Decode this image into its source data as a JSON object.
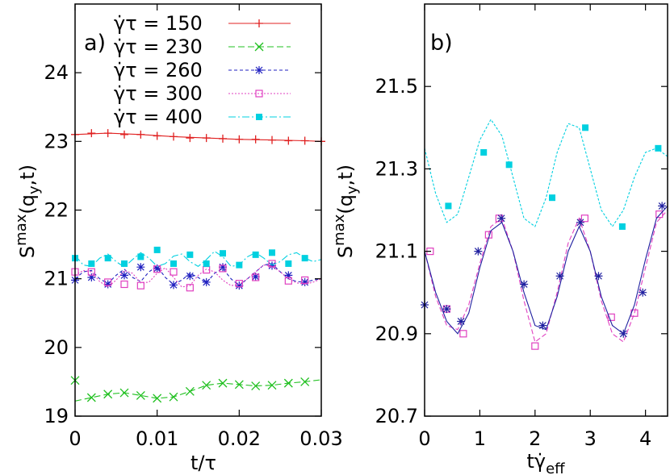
{
  "chart_data": [
    {
      "type": "line",
      "panel_label": "a)",
      "xlabel": "t/τ",
      "ylabel": "S",
      "ylabel_sup": "max",
      "ylabel_args": "(q",
      "ylabel_sub": "y",
      "ylabel_close": ",t)",
      "xlim": [
        0,
        0.03
      ],
      "ylim": [
        19,
        25
      ],
      "xticks": [
        "0",
        "0.01",
        "0.02",
        "0.03"
      ],
      "xtick_values": [
        0,
        0.01,
        0.02,
        0.03
      ],
      "yticks": [
        "19",
        "20",
        "21",
        "22",
        "23",
        "24"
      ],
      "ytick_values": [
        19,
        20,
        21,
        22,
        23,
        24
      ],
      "legend_position": "top-left",
      "series": [
        {
          "name": "γ̇τ  = 150",
          "color": "#e02020",
          "marker": "plus",
          "dash": "",
          "line": {
            "x": [
              0,
              0.004,
              0.008,
              0.012,
              0.016,
              0.02,
              0.024,
              0.028,
              0.03
            ],
            "y": [
              23.1,
              23.12,
              23.1,
              23.07,
              23.05,
              23.03,
              23.02,
              23.01,
              23.0
            ]
          },
          "points": {
            "x": [
              0,
              0.002,
              0.004,
              0.006,
              0.008,
              0.01,
              0.012,
              0.014,
              0.016,
              0.018,
              0.02,
              0.022,
              0.024,
              0.026,
              0.028,
              0.03
            ],
            "y": [
              23.1,
              23.12,
              23.12,
              23.1,
              23.1,
              23.08,
              23.07,
              23.05,
              23.05,
              23.04,
              23.03,
              23.03,
              23.02,
              23.01,
              23.01,
              23.0
            ]
          }
        },
        {
          "name": "γ̇τ  = 230",
          "color": "#20c020",
          "marker": "cross",
          "dash": "8,4",
          "line": {
            "x": [
              0,
              0.002,
              0.004,
              0.006,
              0.008,
              0.01,
              0.012,
              0.014,
              0.016,
              0.018,
              0.02,
              0.022,
              0.024,
              0.026,
              0.028,
              0.03
            ],
            "y": [
              19.22,
              19.27,
              19.32,
              19.34,
              19.3,
              19.26,
              19.28,
              19.36,
              19.45,
              19.48,
              19.46,
              19.44,
              19.45,
              19.48,
              19.5,
              19.53
            ]
          },
          "points": {
            "x": [
              0,
              0.002,
              0.004,
              0.006,
              0.008,
              0.01,
              0.012,
              0.014,
              0.016,
              0.018,
              0.02,
              0.022,
              0.024,
              0.026,
              0.028
            ],
            "y": [
              19.52,
              19.27,
              19.32,
              19.34,
              19.3,
              19.26,
              19.28,
              19.36,
              19.45,
              19.48,
              19.46,
              19.44,
              19.45,
              19.48,
              19.5
            ]
          }
        },
        {
          "name": "γ̇τ  = 260",
          "color": "#2020c0",
          "marker": "star",
          "dash": "4,3",
          "line": {
            "x": [
              0,
              0.001,
              0.002,
              0.003,
              0.004,
              0.005,
              0.006,
              0.007,
              0.008,
              0.009,
              0.01,
              0.011,
              0.012,
              0.013,
              0.014,
              0.015,
              0.016,
              0.017,
              0.018,
              0.019,
              0.02,
              0.021,
              0.022,
              0.023,
              0.024,
              0.025,
              0.026,
              0.027,
              0.028,
              0.029,
              0.03
            ],
            "y": [
              21.0,
              21.1,
              21.12,
              21.0,
              20.93,
              21.05,
              21.14,
              21.02,
              20.96,
              21.1,
              21.18,
              21.02,
              20.92,
              20.98,
              21.08,
              21.02,
              20.94,
              21.08,
              21.15,
              21.0,
              20.9,
              21.0,
              21.1,
              21.2,
              21.22,
              21.1,
              21.0,
              20.96,
              20.95,
              20.98,
              21.0
            ]
          },
          "points": {
            "x": [
              0,
              0.002,
              0.004,
              0.006,
              0.008,
              0.01,
              0.012,
              0.014,
              0.016,
              0.018,
              0.02,
              0.022,
              0.024,
              0.026,
              0.028
            ],
            "y": [
              20.98,
              21.02,
              20.92,
              21.05,
              21.17,
              21.15,
              20.91,
              21.04,
              20.95,
              21.17,
              20.9,
              21.03,
              21.19,
              21.05,
              20.95
            ]
          }
        },
        {
          "name": "γ̇τ  = 300",
          "color": "#e040c0",
          "marker": "square-open",
          "dash": "2,2",
          "line": {
            "x": [
              0,
              0.001,
              0.002,
              0.003,
              0.004,
              0.005,
              0.006,
              0.007,
              0.008,
              0.009,
              0.01,
              0.011,
              0.012,
              0.013,
              0.014,
              0.015,
              0.016,
              0.017,
              0.018,
              0.019,
              0.02,
              0.021,
              0.022,
              0.023,
              0.024,
              0.025,
              0.026,
              0.027,
              0.028,
              0.029,
              0.03
            ],
            "y": [
              21.05,
              21.12,
              21.1,
              20.96,
              20.88,
              20.98,
              21.12,
              21.08,
              20.94,
              20.95,
              21.08,
              21.16,
              21.02,
              20.88,
              20.9,
              21.05,
              21.14,
              21.1,
              20.98,
              20.9,
              20.92,
              21.0,
              21.1,
              21.2,
              21.18,
              21.1,
              21.0,
              20.94,
              20.92,
              20.95,
              21.0
            ]
          },
          "points": {
            "x": [
              0,
              0.002,
              0.004,
              0.006,
              0.008,
              0.01,
              0.012,
              0.014,
              0.016,
              0.018,
              0.02,
              0.022,
              0.024,
              0.026,
              0.028
            ],
            "y": [
              21.1,
              21.1,
              20.95,
              20.92,
              20.9,
              21.14,
              21.1,
              20.87,
              21.13,
              21.15,
              20.93,
              21.02,
              21.22,
              20.97,
              20.98
            ]
          }
        },
        {
          "name": "γ̇τ  = 400",
          "color": "#00d0e0",
          "marker": "square-filled",
          "dash": "9,3,2,3",
          "line": {
            "x": [
              0,
              0.001,
              0.002,
              0.003,
              0.004,
              0.005,
              0.006,
              0.007,
              0.008,
              0.009,
              0.01,
              0.011,
              0.012,
              0.013,
              0.014,
              0.015,
              0.016,
              0.017,
              0.018,
              0.019,
              0.02,
              0.021,
              0.022,
              0.023,
              0.024,
              0.025,
              0.026,
              0.027,
              0.028,
              0.029,
              0.03
            ],
            "y": [
              21.34,
              21.2,
              21.18,
              21.3,
              21.36,
              21.25,
              21.17,
              21.28,
              21.38,
              21.3,
              21.18,
              21.22,
              21.33,
              21.36,
              21.25,
              21.18,
              21.28,
              21.4,
              21.32,
              21.18,
              21.2,
              21.32,
              21.38,
              21.3,
              21.2,
              21.25,
              21.35,
              21.38,
              21.3,
              21.25,
              21.28
            ]
          },
          "points": {
            "x": [
              0,
              0.002,
              0.004,
              0.006,
              0.008,
              0.01,
              0.012,
              0.014,
              0.016,
              0.018,
              0.02,
              0.022,
              0.024,
              0.026,
              0.028
            ],
            "y": [
              21.3,
              21.22,
              21.3,
              21.22,
              21.32,
              21.42,
              21.22,
              21.35,
              21.22,
              21.37,
              21.2,
              21.35,
              21.38,
              21.22,
              21.3
            ]
          }
        }
      ]
    },
    {
      "type": "line",
      "panel_label": "b)",
      "xlabel": "tγ̇",
      "xlabel_sub": "eff",
      "ylabel": "S",
      "ylabel_sup": "max",
      "ylabel_args": "(q",
      "ylabel_sub": "y",
      "ylabel_close": ",t)",
      "xlim": [
        0,
        4.4
      ],
      "ylim": [
        20.7,
        21.7
      ],
      "xticks": [
        "0",
        "1",
        "2",
        "3",
        "4"
      ],
      "xtick_values": [
        0,
        1,
        2,
        3,
        4
      ],
      "yticks": [
        "20.7",
        "20.9",
        "21.1",
        "21.3",
        "21.5"
      ],
      "ytick_values": [
        20.7,
        20.9,
        21.1,
        21.3,
        21.5
      ],
      "series": [
        {
          "color": "#00d0e0",
          "marker": "square-filled",
          "dash": "3,2",
          "line": {
            "x": [
              0,
              0.2,
              0.4,
              0.6,
              0.8,
              1.0,
              1.2,
              1.4,
              1.6,
              1.8,
              2.0,
              2.2,
              2.4,
              2.6,
              2.8,
              3.0,
              3.2,
              3.4,
              3.6,
              3.8,
              4.0,
              4.2,
              4.4
            ],
            "y": [
              21.35,
              21.24,
              21.17,
              21.19,
              21.28,
              21.37,
              21.42,
              21.38,
              21.28,
              21.18,
              21.16,
              21.23,
              21.34,
              21.41,
              21.4,
              21.3,
              21.2,
              21.16,
              21.2,
              21.28,
              21.34,
              21.35,
              21.33
            ]
          },
          "points": {
            "x": [
              0.43,
              1.07,
              1.53,
              2.31,
              2.91,
              3.58,
              4.23
            ],
            "y": [
              21.21,
              21.34,
              21.31,
              21.23,
              21.4,
              21.16,
              21.35
            ]
          }
        },
        {
          "color": "#e040c0",
          "marker": "square-open",
          "dash": "6,3",
          "line": {
            "x": [
              0,
              0.2,
              0.4,
              0.6,
              0.8,
              1.0,
              1.2,
              1.4,
              1.6,
              1.8,
              2.0,
              2.2,
              2.4,
              2.6,
              2.8,
              3.0,
              3.2,
              3.4,
              3.6,
              3.8,
              4.0,
              4.2,
              4.4
            ],
            "y": [
              21.1,
              20.99,
              20.92,
              20.91,
              20.97,
              21.07,
              21.16,
              21.18,
              21.1,
              20.98,
              20.88,
              20.9,
              21.0,
              21.12,
              21.18,
              21.1,
              20.98,
              20.9,
              20.88,
              20.95,
              21.06,
              21.17,
              21.2
            ]
          },
          "points": {
            "x": [
              0.1,
              0.4,
              0.7,
              1.16,
              1.35,
              2.0,
              2.9,
              3.38,
              3.8,
              4.25
            ],
            "y": [
              21.1,
              20.96,
              20.9,
              21.14,
              21.18,
              20.87,
              21.18,
              20.94,
              20.95,
              21.19
            ]
          }
        },
        {
          "color": "#2020a0",
          "marker": "star",
          "dash": "",
          "line": {
            "x": [
              0,
              0.2,
              0.4,
              0.6,
              0.8,
              1.0,
              1.2,
              1.4,
              1.6,
              1.8,
              2.0,
              2.2,
              2.4,
              2.6,
              2.8,
              3.0,
              3.2,
              3.4,
              3.6,
              3.8,
              4.0,
              4.2,
              4.4
            ],
            "y": [
              21.1,
              21.0,
              20.93,
              20.9,
              20.95,
              21.06,
              21.15,
              21.17,
              21.1,
              21.0,
              20.92,
              20.91,
              20.99,
              21.1,
              21.16,
              21.1,
              20.99,
              20.92,
              20.9,
              20.97,
              21.08,
              21.18,
              21.21
            ]
          },
          "points": {
            "x": [
              0.0,
              0.4,
              0.66,
              0.97,
              1.39,
              1.8,
              2.14,
              2.45,
              2.82,
              3.15,
              3.6,
              3.95,
              4.3
            ],
            "y": [
              20.97,
              20.96,
              20.93,
              21.1,
              21.18,
              21.02,
              20.92,
              21.04,
              21.17,
              21.04,
              20.9,
              21.0,
              21.21
            ]
          }
        }
      ]
    }
  ]
}
